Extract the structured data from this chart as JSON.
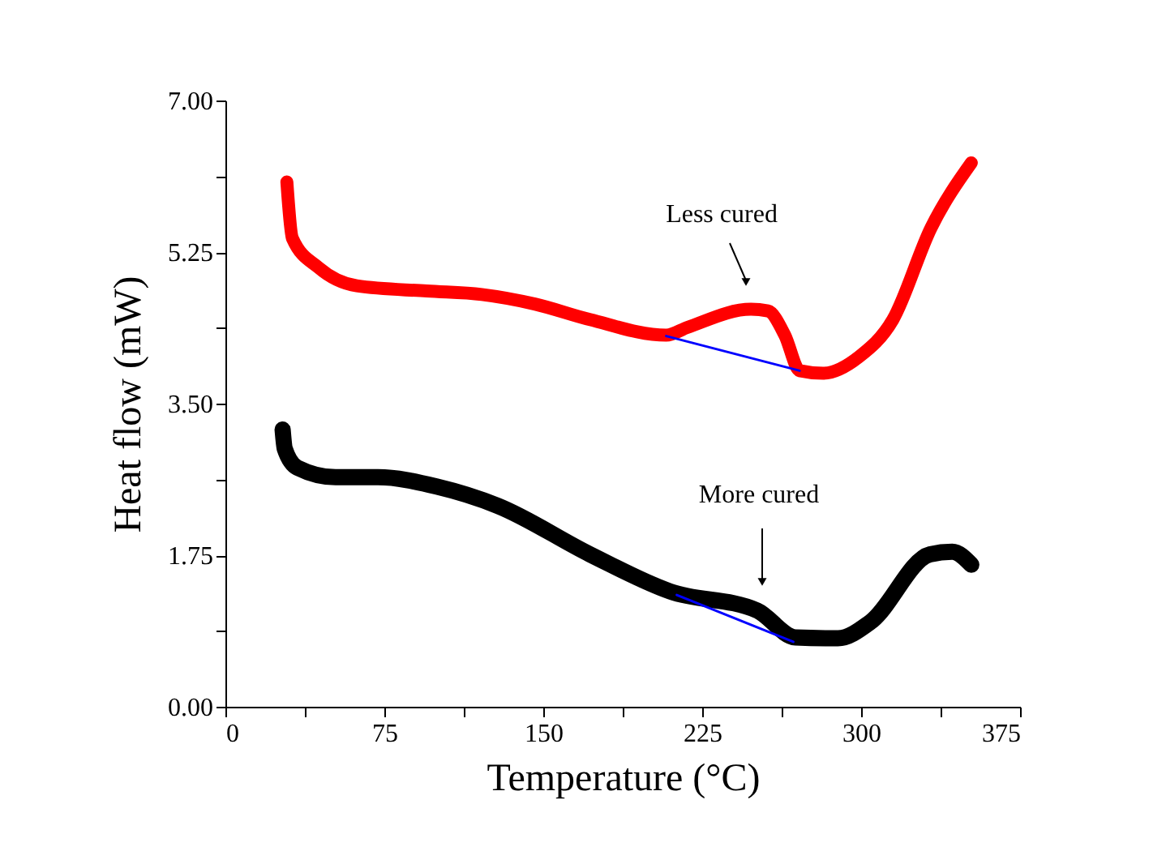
{
  "chart_data": {
    "type": "line",
    "xlabel": "Temperature (°C)",
    "ylabel": "Heat flow (mW)",
    "xlim": [
      0,
      375
    ],
    "ylim": [
      0,
      7
    ],
    "xticks": [
      0,
      {
        "value": 37.5,
        "label": null
      },
      75,
      {
        "value": 112.5,
        "label": null
      },
      150,
      {
        "value": 187.5,
        "label": null
      },
      225,
      {
        "value": 262.5,
        "label": null
      },
      300,
      {
        "value": 337.5,
        "label": null
      },
      375
    ],
    "yticks": [
      {
        "value": 0,
        "label": "0.00"
      },
      {
        "value": 0.875,
        "label": null
      },
      {
        "value": 1.75,
        "label": "1.75"
      },
      {
        "value": 2.625,
        "label": null
      },
      {
        "value": 3.5,
        "label": "3.50"
      },
      {
        "value": 4.375,
        "label": null
      },
      {
        "value": 5.25,
        "label": "5.25"
      },
      {
        "value": 6.125,
        "label": null
      },
      {
        "value": 7,
        "label": "7.00"
      }
    ],
    "grid": false,
    "marker": "none",
    "line_style": "solid",
    "series": [
      {
        "color": "#ff0000",
        "x": [
          29,
          31.6,
          44,
          62,
          95,
          121,
          146,
          172,
          208,
          218,
          248,
          256,
          264,
          271,
          282,
          299,
          315,
          333,
          352
        ],
        "values": [
          6.06,
          5.41,
          5.07,
          4.86,
          4.8,
          4.76,
          4.65,
          4.47,
          4.29,
          4.38,
          4.59,
          4.57,
          4.29,
          3.88,
          3.85,
          4.04,
          4.47,
          5.53,
          6.28
        ]
      },
      {
        "color": "#000000",
        "x": [
          27,
          28,
          34,
          52,
          72,
          100,
          128.5,
          172,
          210,
          251,
          269,
          289,
          304.5,
          332.5,
          343,
          352
        ],
        "values": [
          3.2,
          2.98,
          2.76,
          2.65,
          2.65,
          2.54,
          2.32,
          1.76,
          1.33,
          1.11,
          0.8,
          0.79,
          0.98,
          1.76,
          1.79,
          1.64
        ]
      },
      {
        "color": "#0000ff",
        "x": [
          208,
          271
        ],
        "values": [
          4.28,
          3.88
        ]
      },
      {
        "color": "#0000ff",
        "x": [
          213,
          268
        ],
        "values": [
          1.29,
          0.75
        ]
      }
    ],
    "annotations": [
      "Less cured",
      "More cured"
    ]
  }
}
